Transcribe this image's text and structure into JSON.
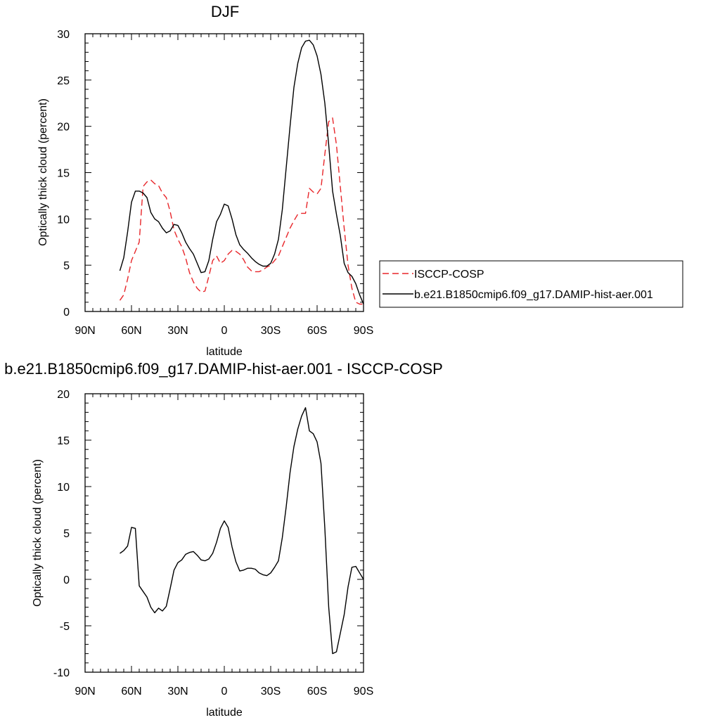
{
  "chart_data": [
    {
      "type": "line",
      "title": "DJF",
      "xlabel": "latitude",
      "ylabel": "Optically thick cloud (percent)",
      "xlim": [
        -90,
        90
      ],
      "ylim": [
        0,
        30
      ],
      "x_ticks": [
        -90,
        -60,
        -30,
        0,
        30,
        60,
        90
      ],
      "x_tick_labels": [
        "90N",
        "60N",
        "30N",
        "0",
        "30S",
        "60S",
        "90S"
      ],
      "y_ticks": [
        0,
        5,
        10,
        15,
        20,
        25,
        30
      ],
      "y_tick_labels": [
        "0",
        "5",
        "10",
        "15",
        "20",
        "25",
        "30"
      ],
      "legend_position": "right",
      "series": [
        {
          "name": "ISCCP-COSP",
          "color": "#e8262a",
          "dash": "dashed",
          "x": [
            -67.5,
            -65,
            -62.5,
            -60,
            -57.5,
            -55,
            -52.5,
            -50,
            -47.5,
            -45,
            -42.5,
            -40,
            -37.5,
            -35,
            -32.5,
            -30,
            -27.5,
            -25,
            -22.5,
            -20,
            -17.5,
            -15,
            -12.5,
            -10,
            -7.5,
            -5,
            -2.5,
            0,
            2.5,
            5,
            7.5,
            10,
            12.5,
            15,
            17.5,
            20,
            22.5,
            25,
            27.5,
            30,
            32.5,
            35,
            37.5,
            40,
            42.5,
            45,
            47.5,
            50,
            52.5,
            55,
            57.5,
            60,
            62.5,
            65,
            67.5,
            70,
            72.5,
            75,
            77.5,
            80,
            82.5,
            85,
            87.5,
            90
          ],
          "values": [
            1.2,
            1.8,
            3.5,
            5.5,
            6.5,
            7.5,
            13.5,
            14,
            14.2,
            13.8,
            13.6,
            12.8,
            12.3,
            10.8,
            8.8,
            7.8,
            7,
            5.8,
            4.2,
            3.2,
            2.5,
            2.1,
            2.2,
            3.8,
            5.5,
            6,
            5.2,
            5.5,
            6.2,
            6.6,
            6.5,
            6.2,
            5.6,
            4.8,
            4.4,
            4.3,
            4.3,
            4.5,
            4.8,
            5,
            5.5,
            6,
            7,
            8,
            9,
            9.8,
            10.5,
            10.6,
            10.6,
            13.3,
            12.9,
            12.7,
            13.3,
            17,
            20.5,
            20.9,
            18,
            13.5,
            9,
            5,
            2.5,
            1,
            0.8,
            0.8
          ]
        },
        {
          "name": "b.e21.B1850cmip6.f09_g17.DAMIP-hist-aer.001",
          "color": "#000000",
          "dash": "solid",
          "x": [
            -67.5,
            -65,
            -62.5,
            -60,
            -57.5,
            -55,
            -52.5,
            -50,
            -47.5,
            -45,
            -42.5,
            -40,
            -37.5,
            -35,
            -32.5,
            -30,
            -27.5,
            -25,
            -22.5,
            -20,
            -17.5,
            -15,
            -12.5,
            -10,
            -7.5,
            -5,
            -2.5,
            0,
            2.5,
            5,
            7.5,
            10,
            12.5,
            15,
            17.5,
            20,
            22.5,
            25,
            27.5,
            30,
            32.5,
            35,
            37.5,
            40,
            42.5,
            45,
            47.5,
            50,
            52.5,
            55,
            57.5,
            60,
            62.5,
            65,
            67.5,
            70,
            72.5,
            75,
            77.5,
            80,
            82.5,
            85,
            87.5,
            90
          ],
          "values": [
            4.4,
            5.8,
            8.6,
            11.8,
            13,
            13,
            12.8,
            12.3,
            10.7,
            10,
            9.7,
            9,
            8.5,
            8.7,
            9.4,
            9.3,
            8.5,
            7.5,
            6.8,
            6.2,
            5.2,
            4.2,
            4.3,
            5.5,
            7.8,
            9.7,
            10.5,
            11.6,
            11.4,
            10,
            8.3,
            7.2,
            6.7,
            6.3,
            5.8,
            5.4,
            5.1,
            4.9,
            4.9,
            5.2,
            6.2,
            7.8,
            11,
            15.5,
            20,
            24.2,
            26.8,
            28.5,
            29.2,
            29.3,
            28.8,
            27.6,
            25.6,
            22.5,
            18,
            13,
            10.5,
            8.2,
            5.2,
            4.2,
            3.8,
            3,
            1.8,
            0.8
          ]
        }
      ]
    },
    {
      "type": "line",
      "title": "b.e21.B1850cmip6.f09_g17.DAMIP-hist-aer.001 - ISCCP-COSP",
      "xlabel": "latitude",
      "ylabel": "Optically thick cloud (percent)",
      "xlim": [
        -90,
        90
      ],
      "ylim": [
        -10,
        20
      ],
      "x_ticks": [
        -90,
        -60,
        -30,
        0,
        30,
        60,
        90
      ],
      "x_tick_labels": [
        "90N",
        "60N",
        "30N",
        "0",
        "30S",
        "60S",
        "90S"
      ],
      "y_ticks": [
        -10,
        -5,
        0,
        5,
        10,
        15,
        20
      ],
      "y_tick_labels": [
        "-10",
        "-5",
        "0",
        "5",
        "10",
        "15",
        "20"
      ],
      "series": [
        {
          "color": "#000000",
          "dash": "solid",
          "x": [
            -67.5,
            -65,
            -62.5,
            -60,
            -57.5,
            -55,
            -52.5,
            -50,
            -47.5,
            -45,
            -42.5,
            -40,
            -37.5,
            -35,
            -32.5,
            -30,
            -27.5,
            -25,
            -22.5,
            -20,
            -17.5,
            -15,
            -12.5,
            -10,
            -7.5,
            -5,
            -2.5,
            0,
            2.5,
            5,
            7.5,
            10,
            12.5,
            15,
            17.5,
            20,
            22.5,
            25,
            27.5,
            30,
            32.5,
            35,
            37.5,
            40,
            42.5,
            45,
            47.5,
            50,
            52.5,
            55,
            57.5,
            60,
            62.5,
            65,
            67.5,
            70,
            72.5,
            75,
            77.5,
            80,
            82.5,
            85,
            87.5,
            90
          ],
          "values": [
            2.8,
            3.1,
            3.6,
            5.6,
            5.5,
            -0.7,
            -1.3,
            -1.9,
            -3,
            -3.6,
            -3.1,
            -3.4,
            -2.9,
            -1,
            1,
            1.8,
            2.1,
            2.7,
            2.9,
            3,
            2.6,
            2.1,
            2,
            2.2,
            2.8,
            4,
            5.5,
            6.3,
            5.6,
            3.5,
            1.9,
            0.9,
            1,
            1.2,
            1.2,
            1.1,
            0.7,
            0.5,
            0.4,
            0.7,
            1.3,
            2,
            4.5,
            7.8,
            11.5,
            14.3,
            16.2,
            17.6,
            18.5,
            16,
            15.7,
            14.8,
            12.5,
            5.5,
            -3,
            -8,
            -7.8,
            -5.8,
            -3.8,
            -0.8,
            1.3,
            1.4,
            0.7,
            0
          ]
        }
      ]
    }
  ]
}
